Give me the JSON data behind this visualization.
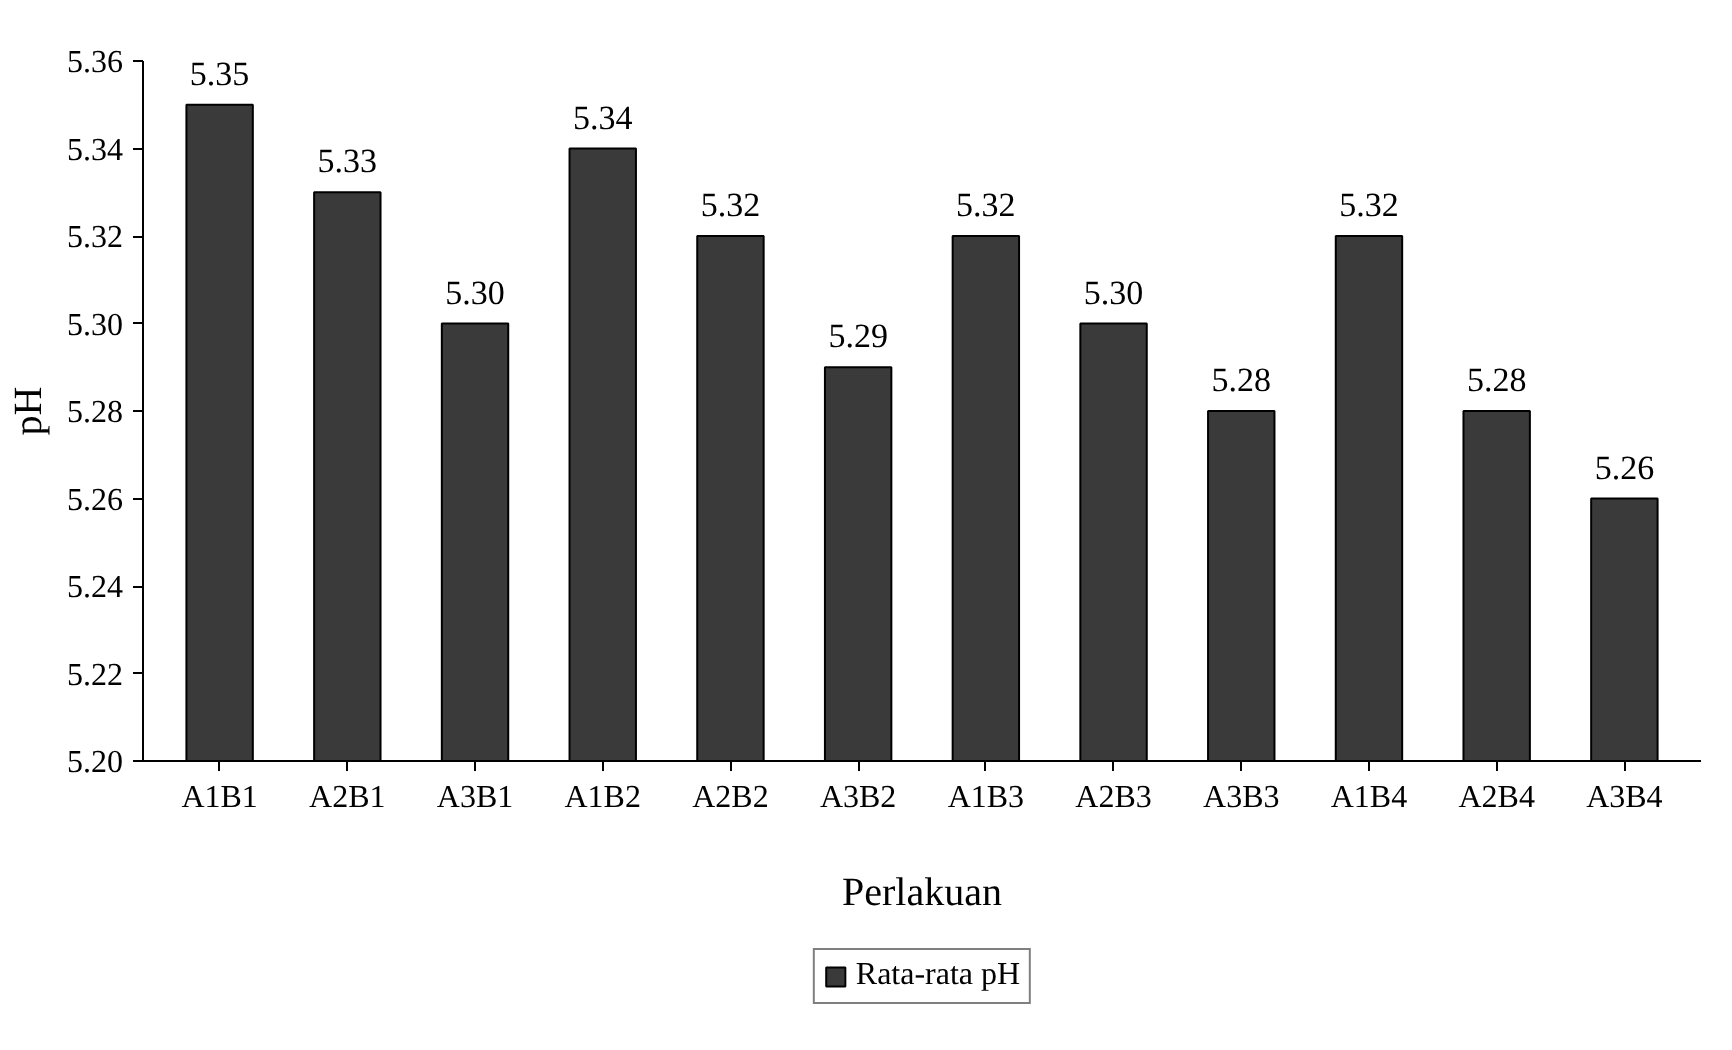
{
  "chart_data": {
    "type": "bar",
    "xlabel": "Perlakuan",
    "ylabel": "pH",
    "categories": [
      "A1B1",
      "A2B1",
      "A3B1",
      "A1B2",
      "A2B2",
      "A3B2",
      "A1B3",
      "A2B3",
      "A3B3",
      "A1B4",
      "A2B4",
      "A3B4"
    ],
    "series": [
      {
        "name": "Rata-rata pH",
        "color": "#3a3a3a",
        "values": [
          5.35,
          5.33,
          5.3,
          5.34,
          5.32,
          5.29,
          5.32,
          5.3,
          5.28,
          5.32,
          5.28,
          5.26
        ],
        "value_labels": [
          "5.35",
          "5.33",
          "5.30",
          "5.34",
          "5.32",
          "5.29",
          "5.32",
          "5.30",
          "5.28",
          "5.32",
          "5.28",
          "5.26"
        ]
      }
    ],
    "ylim": [
      5.2,
      5.36
    ],
    "yticks": [
      {
        "value": 5.2,
        "label": "5.20"
      },
      {
        "value": 5.22,
        "label": "5.22"
      },
      {
        "value": 5.24,
        "label": "5.24"
      },
      {
        "value": 5.26,
        "label": "5.26"
      },
      {
        "value": 5.28,
        "label": "5.28"
      },
      {
        "value": 5.3,
        "label": "5.30"
      },
      {
        "value": 5.32,
        "label": "5.32"
      },
      {
        "value": 5.34,
        "label": "5.34"
      },
      {
        "value": 5.36,
        "label": "5.36"
      }
    ],
    "legend": "bottom"
  }
}
